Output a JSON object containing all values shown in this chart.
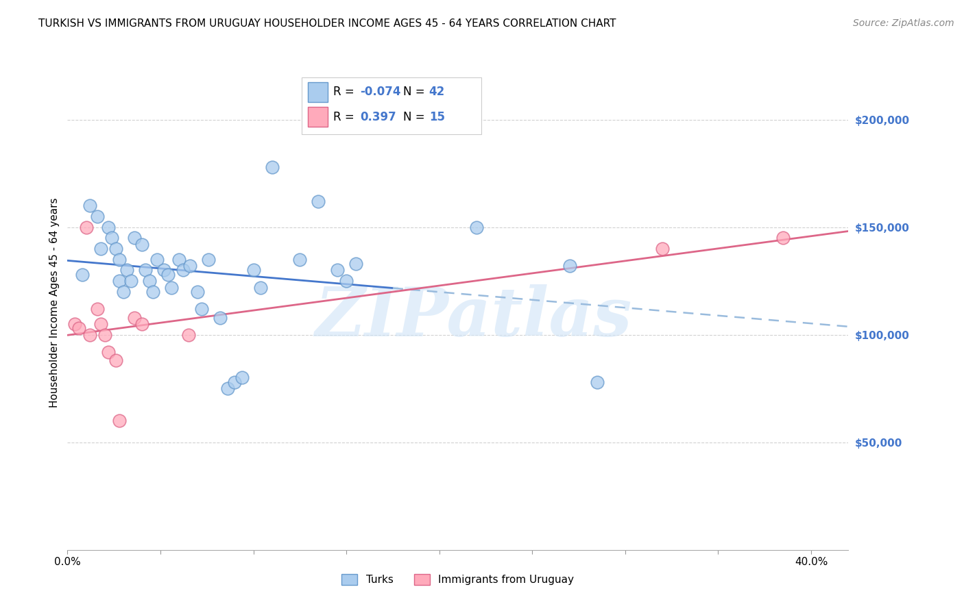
{
  "title": "TURKISH VS IMMIGRANTS FROM URUGUAY HOUSEHOLDER INCOME AGES 45 - 64 YEARS CORRELATION CHART",
  "source": "Source: ZipAtlas.com",
  "ylabel": "Householder Income Ages 45 - 64 years",
  "xlim": [
    0.0,
    0.42
  ],
  "ylim": [
    0,
    230000
  ],
  "yticks_right": [
    50000,
    100000,
    150000,
    200000
  ],
  "ytick_labels_right": [
    "$50,000",
    "$100,000",
    "$150,000",
    "$200,000"
  ],
  "turks_x": [
    0.008,
    0.012,
    0.016,
    0.018,
    0.022,
    0.024,
    0.026,
    0.028,
    0.028,
    0.03,
    0.032,
    0.034,
    0.036,
    0.04,
    0.042,
    0.044,
    0.046,
    0.048,
    0.052,
    0.054,
    0.056,
    0.06,
    0.062,
    0.066,
    0.07,
    0.072,
    0.076,
    0.082,
    0.086,
    0.09,
    0.094,
    0.1,
    0.104,
    0.11,
    0.125,
    0.135,
    0.145,
    0.15,
    0.155,
    0.22,
    0.27,
    0.285
  ],
  "turks_y": [
    128000,
    160000,
    155000,
    140000,
    150000,
    145000,
    140000,
    135000,
    125000,
    120000,
    130000,
    125000,
    145000,
    142000,
    130000,
    125000,
    120000,
    135000,
    130000,
    128000,
    122000,
    135000,
    130000,
    132000,
    120000,
    112000,
    135000,
    108000,
    75000,
    78000,
    80000,
    130000,
    122000,
    178000,
    135000,
    162000,
    130000,
    125000,
    133000,
    150000,
    132000,
    78000
  ],
  "uruguay_x": [
    0.004,
    0.006,
    0.01,
    0.012,
    0.016,
    0.018,
    0.02,
    0.022,
    0.026,
    0.028,
    0.036,
    0.04,
    0.065,
    0.32,
    0.385
  ],
  "uruguay_y": [
    105000,
    103000,
    150000,
    100000,
    112000,
    105000,
    100000,
    92000,
    88000,
    60000,
    108000,
    105000,
    100000,
    140000,
    145000
  ],
  "turks_color": "#aaccee",
  "turks_edge_color": "#6699cc",
  "uruguay_color": "#ffaabb",
  "uruguay_edge_color": "#dd6688",
  "regression_blue_color": "#4477cc",
  "regression_pink_color": "#dd6688",
  "regression_blue_dashed_color": "#99bbdd",
  "legend_label_turks": "Turks",
  "legend_label_uruguay": "Immigrants from Uruguay",
  "grid_color": "#cccccc",
  "background_color": "#ffffff",
  "right_axis_color": "#4477cc",
  "watermark_text": "ZIPatlas",
  "watermark_color": "#d0e4f7",
  "blue_line_x_start": 0.0,
  "blue_line_x_solid_end": 0.175,
  "blue_line_x_end": 0.42,
  "pink_line_x_start": 0.0,
  "pink_line_x_end": 0.42
}
